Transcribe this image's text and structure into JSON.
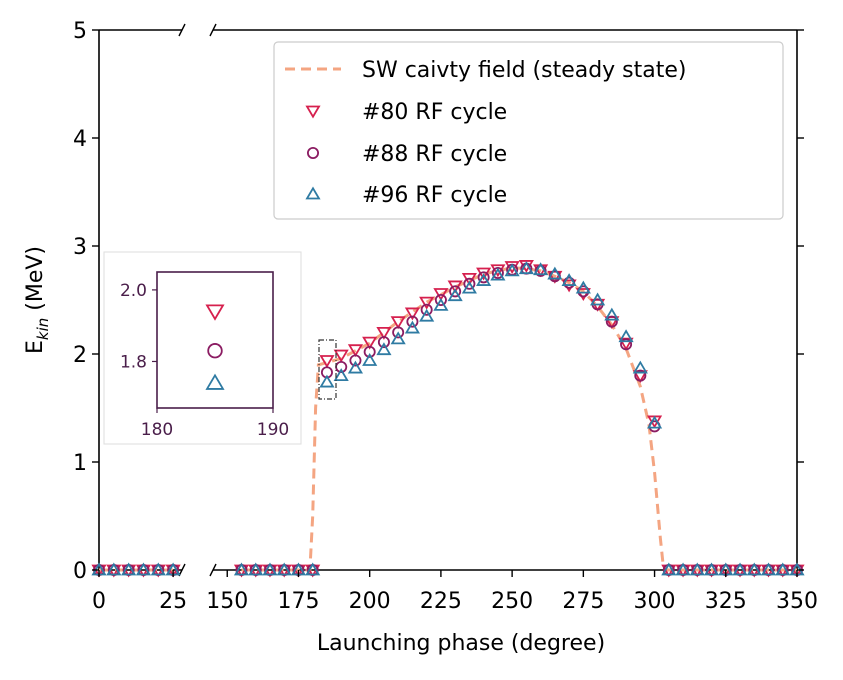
{
  "chart_data": {
    "type": "scatter",
    "xlabel": "Launching phase (degree)",
    "ylabel_main": "E",
    "ylabel_sub": "kin",
    "ylabel_unit": " (MeV)",
    "ylim": [
      0,
      5
    ],
    "yticks": [
      "0",
      "1",
      "2",
      "3",
      "4",
      "5"
    ],
    "left_axis": {
      "xlim": [
        0,
        28
      ],
      "xticks": [
        "0",
        "25"
      ]
    },
    "right_axis": {
      "xlim": [
        145,
        350
      ],
      "xticks": [
        "150",
        "175",
        "200",
        "225",
        "250",
        "275",
        "300",
        "325",
        "350"
      ]
    },
    "broken_axis": true,
    "legend_placement": "top-right",
    "colors": {
      "sw": "#f4a582",
      "c80": "#d6204e",
      "c88": "#8b1c62",
      "c96": "#2f7ba3",
      "inset": "#4a1e4a"
    },
    "series": [
      {
        "name": "SW caivty field (steady state)",
        "style": "dashed-line",
        "x": [
          0,
          27,
          155,
          179,
          180,
          181,
          182,
          185,
          190,
          200,
          210,
          220,
          230,
          240,
          250,
          255,
          260,
          265,
          270,
          275,
          280,
          285,
          290,
          295,
          298,
          300,
          302,
          303,
          304,
          350
        ],
        "y": [
          0,
          0,
          0,
          0,
          0.5,
          1.5,
          1.9,
          1.92,
          1.96,
          2.1,
          2.3,
          2.48,
          2.62,
          2.74,
          2.8,
          2.79,
          2.77,
          2.72,
          2.66,
          2.58,
          2.44,
          2.27,
          2.05,
          1.7,
          1.35,
          0.9,
          0.3,
          0.05,
          0,
          0
        ]
      },
      {
        "name": "#80 RF cycle",
        "marker": "triangle-down",
        "x": [
          0,
          5,
          10,
          15,
          20,
          25,
          155,
          160,
          165,
          170,
          175,
          180,
          185,
          190,
          195,
          200,
          205,
          210,
          215,
          220,
          225,
          230,
          235,
          240,
          245,
          250,
          255,
          260,
          265,
          270,
          275,
          280,
          285,
          290,
          295,
          300,
          305,
          310,
          315,
          320,
          325,
          330,
          335,
          340,
          345,
          350
        ],
        "y": [
          0,
          0,
          0,
          0,
          0,
          0,
          0,
          0,
          0,
          0,
          0,
          0,
          1.94,
          1.99,
          2.04,
          2.11,
          2.2,
          2.3,
          2.38,
          2.48,
          2.56,
          2.63,
          2.7,
          2.75,
          2.78,
          2.81,
          2.82,
          2.78,
          2.72,
          2.64,
          2.56,
          2.46,
          2.3,
          2.1,
          1.8,
          1.38,
          0,
          0,
          0,
          0,
          0,
          0,
          0,
          0,
          0,
          0
        ]
      },
      {
        "name": "#88 RF cycle",
        "marker": "circle",
        "x": [
          0,
          5,
          10,
          15,
          20,
          25,
          155,
          160,
          165,
          170,
          175,
          180,
          185,
          190,
          195,
          200,
          205,
          210,
          215,
          220,
          225,
          230,
          235,
          240,
          245,
          250,
          255,
          260,
          265,
          270,
          275,
          280,
          285,
          290,
          295,
          300,
          305,
          310,
          315,
          320,
          325,
          330,
          335,
          340,
          345,
          350
        ],
        "y": [
          0,
          0,
          0,
          0,
          0,
          0,
          0,
          0,
          0,
          0,
          0,
          0,
          1.83,
          1.88,
          1.94,
          2.02,
          2.11,
          2.2,
          2.3,
          2.41,
          2.5,
          2.58,
          2.65,
          2.71,
          2.75,
          2.78,
          2.79,
          2.77,
          2.72,
          2.66,
          2.58,
          2.46,
          2.3,
          2.09,
          1.8,
          1.33,
          0,
          0,
          0,
          0,
          0,
          0,
          0,
          0,
          0,
          0
        ]
      },
      {
        "name": "#96 RF cycle",
        "marker": "triangle-up",
        "x": [
          0,
          5,
          10,
          15,
          20,
          25,
          155,
          160,
          165,
          170,
          175,
          180,
          185,
          190,
          195,
          200,
          205,
          210,
          215,
          220,
          225,
          230,
          235,
          240,
          245,
          250,
          255,
          260,
          265,
          270,
          275,
          280,
          285,
          290,
          295,
          300,
          305,
          310,
          315,
          320,
          325,
          330,
          335,
          340,
          345,
          350
        ],
        "y": [
          0,
          0,
          0,
          0,
          0,
          0,
          0,
          0,
          0,
          0,
          0,
          0,
          1.74,
          1.8,
          1.87,
          1.94,
          2.04,
          2.14,
          2.24,
          2.35,
          2.45,
          2.54,
          2.61,
          2.68,
          2.73,
          2.77,
          2.79,
          2.78,
          2.74,
          2.68,
          2.61,
          2.5,
          2.36,
          2.16,
          1.87,
          1.36,
          0,
          0,
          0,
          0,
          0,
          0,
          0,
          0,
          0,
          0
        ]
      }
    ],
    "inset": {
      "xlim": [
        180,
        190
      ],
      "ylim": [
        1.67,
        2.05
      ],
      "xticks": [
        "180",
        "190"
      ],
      "yticks": [
        "1.8",
        "2.0"
      ],
      "points": [
        {
          "series": "#80 RF cycle",
          "x": 185,
          "y": 1.94
        },
        {
          "series": "#88 RF cycle",
          "x": 185,
          "y": 1.83
        },
        {
          "series": "#96 RF cycle",
          "x": 185,
          "y": 1.74
        }
      ]
    }
  }
}
